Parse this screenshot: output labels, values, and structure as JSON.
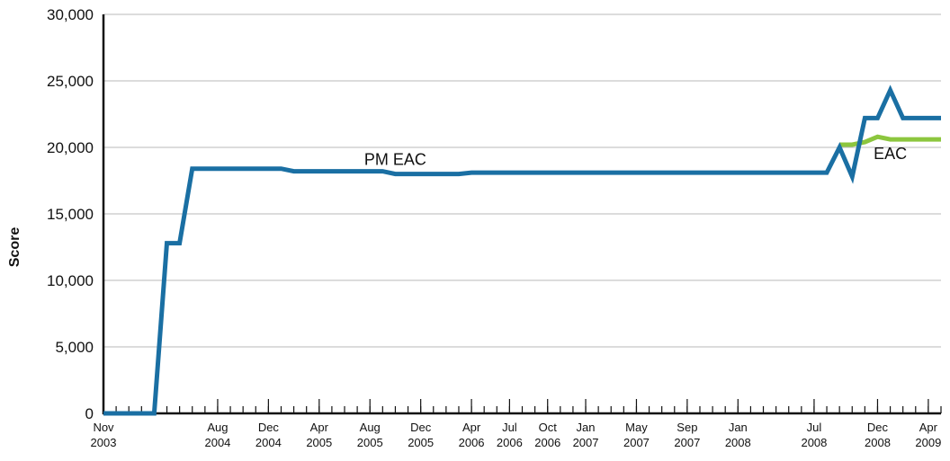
{
  "chart_data": {
    "type": "line",
    "title": "",
    "xlabel": "",
    "ylabel": "Score",
    "ylim": [
      0,
      30000
    ],
    "yticks": [
      "0",
      "5,000",
      "10,000",
      "15,000",
      "20,000",
      "25,000",
      "30,000"
    ],
    "ytick_values": [
      0,
      5000,
      10000,
      15000,
      20000,
      25000,
      30000
    ],
    "grid": true,
    "x_tick_labels": [
      {
        "month": "Nov",
        "year": "2003"
      },
      {
        "month": "Aug",
        "year": "2004"
      },
      {
        "month": "Dec",
        "year": "2004"
      },
      {
        "month": "Apr",
        "year": "2005"
      },
      {
        "month": "Aug",
        "year": "2005"
      },
      {
        "month": "Dec",
        "year": "2005"
      },
      {
        "month": "Apr",
        "year": "2006"
      },
      {
        "month": "Jul",
        "year": "2006"
      },
      {
        "month": "Oct",
        "year": "2006"
      },
      {
        "month": "Jan",
        "year": "2007"
      },
      {
        "month": "May",
        "year": "2007"
      },
      {
        "month": "Sep",
        "year": "2007"
      },
      {
        "month": "Jan",
        "year": "2008"
      },
      {
        "month": "Jul",
        "year": "2008"
      },
      {
        "month": "Dec",
        "year": "2008"
      },
      {
        "month": "Apr",
        "year": "2009"
      }
    ],
    "x_tick_values": [
      "2003-11",
      "2004-08",
      "2004-12",
      "2005-04",
      "2005-08",
      "2005-12",
      "2006-04",
      "2006-07",
      "2006-10",
      "2007-01",
      "2007-05",
      "2007-09",
      "2008-01",
      "2008-07",
      "2008-12",
      "2009-04"
    ],
    "series": [
      {
        "name": "PM EAC",
        "color": "#1a6fa3",
        "x": [
          "2003-11",
          "2004-01",
          "2004-03",
          "2004-04",
          "2004-05",
          "2004-06",
          "2004-08",
          "2004-10",
          "2004-12",
          "2005-01",
          "2005-02",
          "2005-04",
          "2005-06",
          "2005-08",
          "2005-09",
          "2005-10",
          "2005-12",
          "2006-02",
          "2006-03",
          "2006-04",
          "2006-06",
          "2006-09",
          "2007-01",
          "2007-06",
          "2007-12",
          "2008-06",
          "2008-07",
          "2008-08",
          "2008-09",
          "2008-10",
          "2008-11",
          "2008-12",
          "2009-01",
          "2009-02",
          "2009-03",
          "2009-04",
          "2009-05"
        ],
        "y": [
          0,
          0,
          0,
          12800,
          12800,
          18400,
          18400,
          18400,
          18400,
          18400,
          18200,
          18200,
          18200,
          18200,
          18200,
          18000,
          18000,
          18000,
          18000,
          18100,
          18100,
          18100,
          18100,
          18100,
          18100,
          18100,
          18100,
          18100,
          20000,
          17800,
          22200,
          22200,
          24300,
          22200,
          22200,
          22200,
          22200
        ]
      },
      {
        "name": "EAC",
        "color": "#8cc63e",
        "x": [
          "2008-09",
          "2008-10",
          "2008-11",
          "2008-12",
          "2009-01",
          "2009-02",
          "2009-03",
          "2009-04",
          "2009-05"
        ],
        "y": [
          20200,
          20200,
          20400,
          20800,
          20600,
          20600,
          20600,
          20600,
          20600
        ]
      }
    ],
    "annotations": [
      {
        "text": "PM EAC",
        "x": "2005-10",
        "y": 18000
      },
      {
        "text": "EAC",
        "x": "2009-01",
        "y": 20600
      }
    ],
    "legend": "none"
  }
}
